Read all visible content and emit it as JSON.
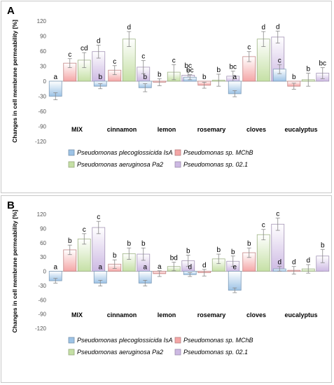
{
  "chart_data": [
    {
      "type": "bar",
      "panel_label": "A",
      "ylabel": "Changes in cell membrane permeability [%]",
      "ylim": [
        -120,
        120
      ],
      "yticks": [
        "-120",
        "-90",
        "-60",
        "-30",
        "0",
        "30",
        "60",
        "90",
        "120"
      ],
      "categories": [
        "MIX",
        "cinnamon",
        "lemon",
        "rosemary",
        "cloves",
        "eucalyptus"
      ],
      "series": [
        {
          "name": "Pseudomonas plecoglossicida IsA",
          "color": "#9dc3e6",
          "values": [
            -30,
            -10,
            -13,
            8,
            -25,
            24
          ],
          "errors": [
            7,
            5,
            8,
            5,
            6,
            9
          ],
          "labels": [
            "a",
            "b",
            "b",
            "bc",
            "a",
            "c"
          ]
        },
        {
          "name": "Pseudomonas sp. MChB",
          "color": "#f4a6a6",
          "values": [
            36,
            22,
            -2,
            -8,
            49,
            -10
          ],
          "errors": [
            9,
            9,
            7,
            6,
            10,
            6
          ],
          "labels": [
            "c",
            "c",
            "b",
            "b",
            "c",
            "b"
          ]
        },
        {
          "name": "Pseudomonas aeruginosa Pa2",
          "color": "#c5e0a5",
          "values": [
            42,
            84,
            18,
            2,
            84,
            3
          ],
          "errors": [
            15,
            15,
            15,
            12,
            15,
            13
          ],
          "labels": [
            "cd",
            "d",
            "c",
            "b",
            "d",
            "b"
          ]
        },
        {
          "name": "Pseudomonas sp. 02.1",
          "color": "#cdb9e3",
          "values": [
            59,
            28,
            12,
            10,
            88,
            16
          ],
          "errors": [
            13,
            13,
            10,
            10,
            12,
            11
          ],
          "labels": [
            "d",
            "c",
            "bc",
            "bc",
            "d",
            "bc"
          ]
        }
      ],
      "grid": false,
      "legend": "bottom"
    },
    {
      "type": "bar",
      "panel_label": "B",
      "ylabel": "Changes in cell membrane permeability [%]",
      "ylim": [
        -120,
        120
      ],
      "yticks": [
        "-120",
        "-90",
        "-60",
        "-30",
        "0",
        "30",
        "60",
        "90",
        "120"
      ],
      "categories": [
        "MIX",
        "cinnamon",
        "lemon",
        "rosemary",
        "cloves",
        "eucalyptus"
      ],
      "series": [
        {
          "name": "Pseudomonas plecoglossicida IsA",
          "color": "#9dc3e6",
          "values": [
            -20,
            -25,
            -25,
            -7,
            -40,
            5
          ],
          "errors": [
            5,
            6,
            6,
            4,
            5,
            5
          ],
          "labels": [
            "a",
            "a",
            "a",
            "d",
            "e",
            "d"
          ]
        },
        {
          "name": "Pseudomonas sp. MChB",
          "color": "#f4a6a6",
          "values": [
            45,
            15,
            -5,
            -3,
            39,
            2
          ],
          "errors": [
            10,
            9,
            6,
            7,
            10,
            8
          ],
          "labels": [
            "b",
            "b",
            "a",
            "d",
            "b",
            "d"
          ]
        },
        {
          "name": "Pseudomonas aeruginosa Pa2",
          "color": "#c5e0a5",
          "values": [
            68,
            37,
            10,
            26,
            77,
            5
          ],
          "errors": [
            11,
            12,
            9,
            10,
            11,
            9
          ],
          "labels": [
            "c",
            "b",
            "bd",
            "b",
            "c",
            "d"
          ]
        },
        {
          "name": "Pseudomonas sp. 02.1",
          "color": "#cdb9e3",
          "values": [
            92,
            36,
            22,
            21,
            99,
            32
          ],
          "errors": [
            13,
            13,
            12,
            11,
            13,
            14
          ],
          "labels": [
            "c",
            "b",
            "b",
            "b",
            "c",
            "b"
          ]
        }
      ],
      "grid": false,
      "legend": "bottom"
    }
  ]
}
